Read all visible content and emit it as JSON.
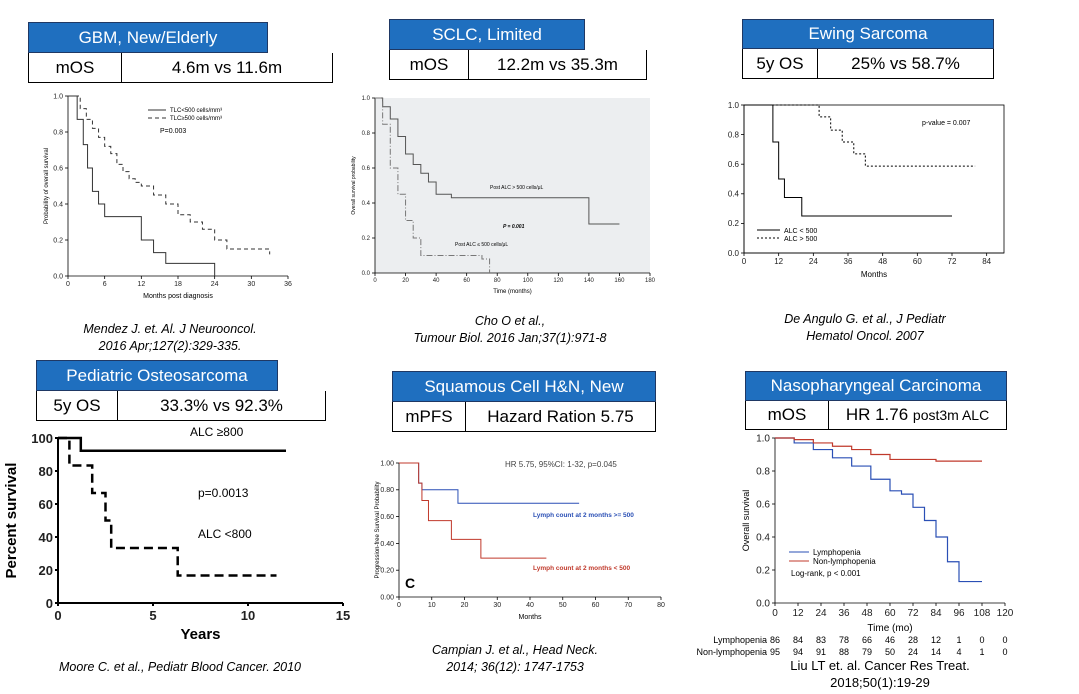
{
  "panels": [
    {
      "title": "GBM, New/Elderly",
      "metric": "mOS",
      "value": "4.6m vs 11.6m"
    },
    {
      "title": "SCLC, Limited",
      "metric": "mOS",
      "value": "12.2m vs 35.3m"
    },
    {
      "title": "Ewing Sarcoma",
      "metric": "5y OS",
      "value": "25% vs 58.7%"
    },
    {
      "title": "Pediatric Osteosarcoma",
      "metric": "5y OS",
      "value": "33.3% vs 92.3%"
    },
    {
      "title": "Squamous Cell H&N, New",
      "metric": "mPFS",
      "value": "Hazard Ration 5.75"
    },
    {
      "title": "Nasopharyngeal Carcinoma",
      "metric": "mOS",
      "value": "HR 1.76",
      "value_suffix": "post3m ALC"
    }
  ],
  "citations": [
    {
      "line1": "Mendez J. et. Al. J Neurooncol.",
      "line2": "2016 Apr;127(2):329-335."
    },
    {
      "line1": "Cho O et al.,",
      "line2": "Tumour Biol. 2016 Jan;37(1):971-8"
    },
    {
      "line1": "De Angulo G. et al., J Pediatr",
      "line2": "Hematol Oncol. 2007"
    },
    {
      "line1": "Moore C. et al., Pediatr Blood Cancer. 2010",
      "line2": ""
    },
    {
      "line1": "Campian J. et al., Head Neck.",
      "line2": "2014; 36(12): 1747-1753"
    },
    {
      "line1": "Liu LT et. al. Cancer Res Treat.",
      "line2": "2018;50(1):19-29"
    }
  ],
  "colors": {
    "header": "#1f6fbf",
    "red": "#c0392b",
    "blue": "#2a4fb5",
    "grey": "#444444"
  },
  "chart_data": [
    {
      "type": "line",
      "id": "gbm",
      "xlabel": "Months post diagnosis",
      "ylabel": "Probability of overall survival",
      "xlim": [
        0,
        36
      ],
      "ylim": [
        0,
        1
      ],
      "xticks": [
        "0",
        "6",
        "12",
        "18",
        "24",
        "30",
        "36"
      ],
      "yticks": [
        "0.0",
        "0.2",
        "0.4",
        "0.6",
        "0.8",
        "1.0"
      ],
      "legend": [
        "TLC<500 cells/mm³",
        "TLC≥500 cells/mm³"
      ],
      "annotation": "P=0.003",
      "series": [
        {
          "name": "TLC<500 cells/mm³",
          "x": [
            0,
            1.5,
            2.5,
            3.2,
            4,
            5,
            6,
            8,
            12,
            14,
            16,
            24
          ],
          "y": [
            1,
            0.87,
            0.73,
            0.6,
            0.47,
            0.4,
            0.33,
            0.33,
            0.2,
            0.13,
            0.07,
            0.0
          ]
        },
        {
          "name": "TLC≥500 cells/mm³",
          "x": [
            0,
            2,
            3,
            4,
            5,
            6,
            7,
            8,
            9,
            10,
            11,
            12,
            14,
            16,
            18,
            20,
            22,
            24,
            26,
            30,
            33
          ],
          "y": [
            1,
            0.93,
            0.87,
            0.82,
            0.77,
            0.72,
            0.68,
            0.62,
            0.58,
            0.54,
            0.52,
            0.5,
            0.45,
            0.4,
            0.34,
            0.3,
            0.26,
            0.2,
            0.15,
            0.15,
            0.12
          ]
        }
      ]
    },
    {
      "type": "line",
      "id": "sclc",
      "xlabel": "Time (months)",
      "ylabel": "Overall survival probability",
      "xlim": [
        0,
        180
      ],
      "ylim": [
        0,
        1
      ],
      "xticks": [
        "0",
        "20",
        "40",
        "60",
        "80",
        "100",
        "120",
        "140",
        "160",
        "180"
      ],
      "yticks": [
        "0.0",
        "0.2",
        "0.4",
        "0.6",
        "0.8",
        "1.0"
      ],
      "annotation": "P = 0.001",
      "series": [
        {
          "name": "Post ALC > 500 cells/μL",
          "x": [
            0,
            5,
            10,
            15,
            20,
            25,
            30,
            35,
            40,
            50,
            60,
            100,
            130,
            140,
            160
          ],
          "y": [
            1,
            0.95,
            0.88,
            0.78,
            0.68,
            0.62,
            0.57,
            0.52,
            0.45,
            0.43,
            0.43,
            0.43,
            0.43,
            0.28,
            0.28
          ]
        },
        {
          "name": "Post ALC ≤ 500 cells/μL",
          "x": [
            0,
            5,
            10,
            15,
            20,
            25,
            30,
            40,
            50,
            60,
            70,
            75
          ],
          "y": [
            1,
            0.85,
            0.6,
            0.45,
            0.3,
            0.2,
            0.1,
            0.1,
            0.1,
            0.1,
            0.08,
            0.0
          ]
        }
      ]
    },
    {
      "type": "line",
      "id": "ewing",
      "xlabel": "Months",
      "ylabel": "",
      "xlim": [
        0,
        90
      ],
      "ylim": [
        0,
        1
      ],
      "xticks": [
        "0",
        "12",
        "24",
        "36",
        "48",
        "60",
        "72",
        "84"
      ],
      "yticks": [
        "0.0",
        "0.2",
        "0.4",
        "0.6",
        "0.8",
        "1.0"
      ],
      "annotation": "p-value = 0.007",
      "legend": [
        "ALC < 500",
        "ALC > 500"
      ],
      "series": [
        {
          "name": "ALC < 500",
          "x": [
            0,
            8,
            10,
            12,
            14,
            18,
            20,
            72
          ],
          "y": [
            1,
            1,
            0.75,
            0.5,
            0.375,
            0.375,
            0.25,
            0.25
          ]
        },
        {
          "name": "ALC > 500",
          "x": [
            0,
            24,
            26,
            30,
            34,
            38,
            42,
            80
          ],
          "y": [
            1,
            1,
            0.92,
            0.83,
            0.75,
            0.67,
            0.587,
            0.587
          ]
        }
      ]
    },
    {
      "type": "line",
      "id": "osteo",
      "xlabel": "Years",
      "ylabel": "Percent survival",
      "xlim": [
        0,
        15
      ],
      "ylim": [
        0,
        100
      ],
      "xticks": [
        "0",
        "5",
        "10",
        "15"
      ],
      "yticks": [
        "0",
        "20",
        "40",
        "60",
        "80",
        "100"
      ],
      "annotation": "p=0.0013",
      "series": [
        {
          "name": "ALC ≥800",
          "x": [
            0,
            1,
            1.2,
            12
          ],
          "y": [
            100,
            100,
            92.3,
            92.3
          ]
        },
        {
          "name": "ALC <800",
          "x": [
            0,
            0.6,
            1.8,
            2.5,
            2.8,
            6.3,
            11.5
          ],
          "y": [
            100,
            83.3,
            66.7,
            50,
            33.3,
            16.7,
            16.7
          ]
        }
      ]
    },
    {
      "type": "line",
      "id": "hn",
      "xlabel": "Months",
      "ylabel": "Progression-free Survival Probability",
      "xlim": [
        0,
        80
      ],
      "ylim": [
        0,
        1
      ],
      "xticks": [
        "0",
        "10",
        "20",
        "30",
        "40",
        "50",
        "60",
        "70",
        "80"
      ],
      "yticks": [
        "0.00",
        "0.20",
        "0.40",
        "0.60",
        "0.80",
        "1.00"
      ],
      "annotation": "HR 5.75, 95%CI: 1-32, p=0.045",
      "panel_label": "C",
      "series": [
        {
          "name": "Lymph count at 2 months >= 500",
          "x": [
            0,
            6,
            7,
            9,
            16,
            18,
            55
          ],
          "y": [
            1,
            0.85,
            0.8,
            0.8,
            0.8,
            0.7,
            0.7
          ]
        },
        {
          "name": "Lymph count at 2 months < 500",
          "x": [
            0,
            6,
            7,
            9,
            16,
            25,
            45
          ],
          "y": [
            1,
            0.85,
            0.72,
            0.57,
            0.43,
            0.29,
            0.29
          ]
        }
      ]
    },
    {
      "type": "line",
      "id": "npc",
      "xlabel": "Time (mo)",
      "ylabel": "Overall survival",
      "xlim": [
        0,
        120
      ],
      "ylim": [
        0,
        1
      ],
      "xticks": [
        "0",
        "12",
        "24",
        "36",
        "48",
        "60",
        "72",
        "84",
        "96",
        "108",
        "120"
      ],
      "yticks": [
        "0.0",
        "0.2",
        "0.4",
        "0.6",
        "0.8",
        "1.0"
      ],
      "legend": [
        "Lymphopenia",
        "Non-lymphopenia"
      ],
      "annotation": "Log-rank, p < 0.001",
      "series": [
        {
          "name": "Lymphopenia",
          "x": [
            0,
            10,
            20,
            30,
            40,
            50,
            60,
            66,
            72,
            78,
            84,
            90,
            96,
            108
          ],
          "y": [
            1,
            0.97,
            0.93,
            0.88,
            0.83,
            0.75,
            0.68,
            0.66,
            0.58,
            0.5,
            0.4,
            0.25,
            0.13,
            0.13
          ]
        },
        {
          "name": "Non-lymphopenia",
          "x": [
            0,
            10,
            20,
            30,
            40,
            50,
            60,
            72,
            84,
            96,
            108
          ],
          "y": [
            1,
            0.99,
            0.97,
            0.95,
            0.93,
            0.9,
            0.87,
            0.87,
            0.86,
            0.86,
            0.86
          ]
        }
      ],
      "risk_table": {
        "rows": [
          {
            "label": "Lymphopenia",
            "values": [
              "86",
              "84",
              "83",
              "78",
              "66",
              "46",
              "28",
              "12",
              "1",
              "0",
              "0"
            ]
          },
          {
            "label": "Non-lymphopenia",
            "values": [
              "95",
              "94",
              "91",
              "88",
              "79",
              "50",
              "24",
              "14",
              "4",
              "1",
              "0"
            ]
          }
        ]
      }
    }
  ]
}
